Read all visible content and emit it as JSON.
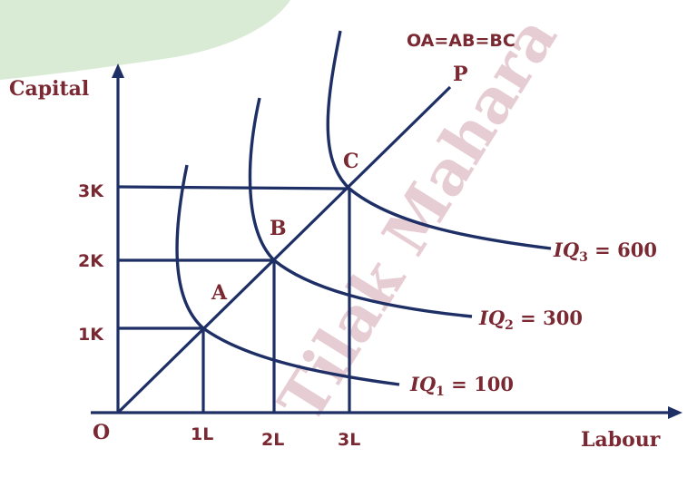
{
  "diagram": {
    "axis_y_title": "Capital",
    "axis_x_title": "Labour",
    "origin_label": "O",
    "relation": "OA=AB=BC",
    "ray_label": "P",
    "y_ticks": [
      "1K",
      "2K",
      "3K"
    ],
    "x_ticks": [
      "1L",
      "2L",
      "3L"
    ],
    "points": [
      "A",
      "B",
      "C"
    ],
    "isoquants": [
      {
        "symbol": "IQ",
        "sub": "1",
        "eq": " = 100"
      },
      {
        "symbol": "IQ",
        "sub": "2",
        "eq": " = 300"
      },
      {
        "symbol": "IQ",
        "sub": "3",
        "eq": " = 600"
      }
    ],
    "watermark": "Tilak Mahara",
    "colors": {
      "lines": "#1e2f66",
      "labels": "#7a2832",
      "corner_blob": "#d9ebd5"
    }
  }
}
